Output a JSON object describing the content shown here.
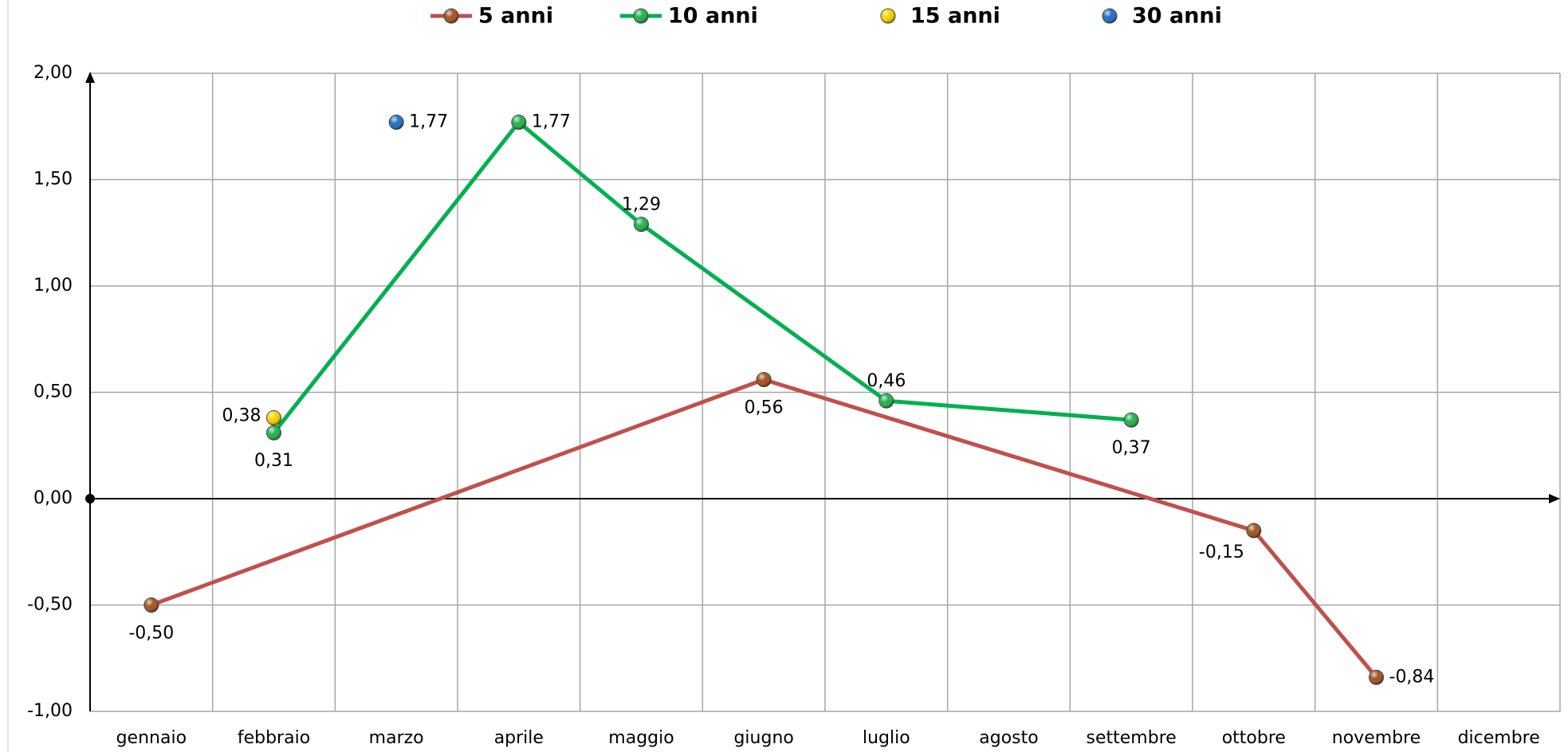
{
  "chart_data": {
    "type": "line",
    "categories": [
      "gennaio",
      "febbraio",
      "marzo",
      "aprile",
      "maggio",
      "giugno",
      "luglio",
      "agosto",
      "settembre",
      "ottobre",
      "novembre",
      "dicembre"
    ],
    "series": [
      {
        "name": "5 anni",
        "color": "#c0504d",
        "marker_color": "#a0521e",
        "mode": "lines+markers",
        "values": [
          -0.5,
          null,
          null,
          null,
          null,
          0.56,
          null,
          null,
          null,
          -0.15,
          -0.84,
          null
        ],
        "value_labels": [
          "-0,50",
          null,
          null,
          null,
          null,
          "0,56",
          null,
          null,
          null,
          "-0,15",
          "-0,84",
          null
        ]
      },
      {
        "name": "10 anni",
        "color": "#00b050",
        "marker_color": "#22b04c",
        "mode": "lines+markers",
        "values": [
          null,
          0.31,
          null,
          1.77,
          1.29,
          null,
          0.46,
          null,
          0.37,
          null,
          null,
          null
        ],
        "value_labels": [
          null,
          "0,31",
          null,
          "1,77",
          "1,29",
          null,
          "0,46",
          null,
          "0,37",
          null,
          null,
          null
        ]
      },
      {
        "name": "15 anni",
        "color": "#ffd000",
        "marker_color": "#ffd000",
        "mode": "markers",
        "values": [
          null,
          0.38,
          null,
          null,
          null,
          null,
          null,
          null,
          null,
          null,
          null,
          null
        ],
        "value_labels": [
          null,
          "0,38",
          null,
          null,
          null,
          null,
          null,
          null,
          null,
          null,
          null,
          null
        ]
      },
      {
        "name": "30 anni",
        "color": "#1f6fc4",
        "marker_color": "#1f6fc4",
        "mode": "markers",
        "values": [
          null,
          null,
          1.77,
          null,
          null,
          null,
          null,
          null,
          null,
          null,
          null,
          null
        ],
        "value_labels": [
          null,
          null,
          "1,77",
          null,
          null,
          null,
          null,
          null,
          null,
          null,
          null,
          null
        ]
      }
    ],
    "ylim": [
      -1,
      2
    ],
    "yticks": [
      {
        "value": -1,
        "label": "-1,00"
      },
      {
        "value": -0.5,
        "label": "-0,50"
      },
      {
        "value": 0,
        "label": "0,00"
      },
      {
        "value": 0.5,
        "label": "0,50"
      },
      {
        "value": 1,
        "label": "1,00"
      },
      {
        "value": 1.5,
        "label": "1,50"
      },
      {
        "value": 2,
        "label": "2,00"
      }
    ],
    "grid": true,
    "legend": "top",
    "negative_label_color": "#ff0000"
  }
}
